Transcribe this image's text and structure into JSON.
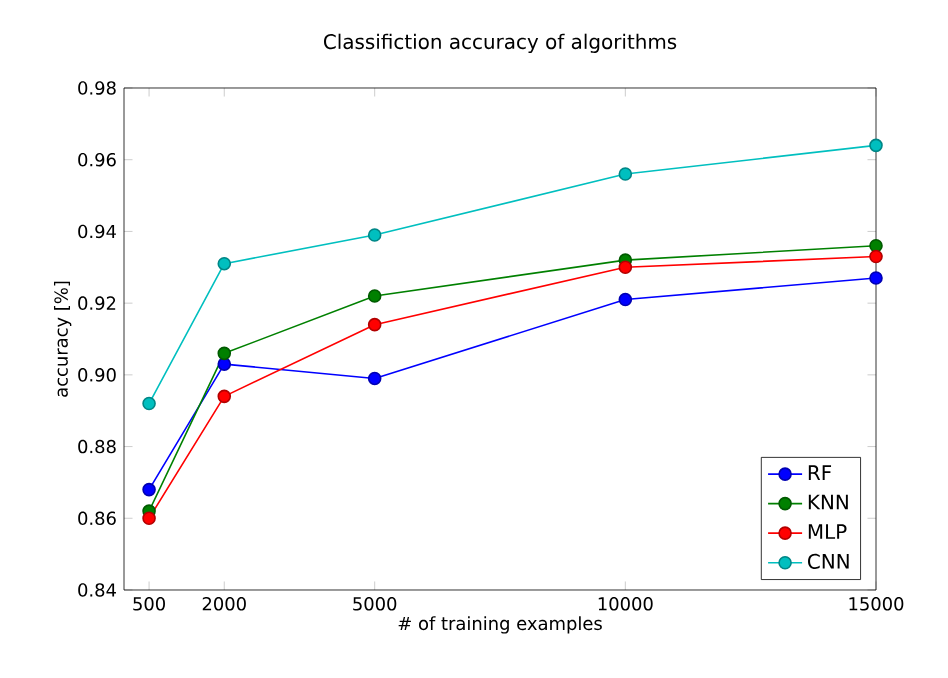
{
  "chart_data": {
    "type": "line",
    "title": "Classifiction accuracy of algorithms",
    "xlabel": "# of training examples",
    "ylabel": "accuracy [%]",
    "x": [
      500,
      2000,
      5000,
      10000,
      15000
    ],
    "series": [
      {
        "name": "RF",
        "color": "#0000ff",
        "values": [
          0.868,
          0.903,
          0.899,
          0.921,
          0.927
        ]
      },
      {
        "name": "KNN",
        "color": "#008000",
        "values": [
          0.862,
          0.906,
          0.922,
          0.932,
          0.936
        ]
      },
      {
        "name": "MLP",
        "color": "#ff0000",
        "values": [
          0.86,
          0.894,
          0.914,
          0.93,
          0.933
        ]
      },
      {
        "name": "CNN",
        "color": "#00bfbf",
        "values": [
          0.892,
          0.931,
          0.939,
          0.956,
          0.964
        ]
      }
    ],
    "xlim": [
      0,
      15000
    ],
    "xticks": [
      500,
      2000,
      5000,
      10000,
      15000
    ],
    "ylim": [
      0.84,
      0.98
    ],
    "yticks": [
      {
        "value": 0.84,
        "label": "0.84"
      },
      {
        "value": 0.86,
        "label": "0.86"
      },
      {
        "value": 0.88,
        "label": "0.88"
      },
      {
        "value": 0.9,
        "label": "0.90"
      },
      {
        "value": 0.92,
        "label": "0.92"
      },
      {
        "value": 0.94,
        "label": "0.94"
      },
      {
        "value": 0.96,
        "label": "0.96"
      },
      {
        "value": 0.98,
        "label": "0.98"
      }
    ],
    "legend": "bottom right",
    "marker": "circle",
    "grid": false,
    "line_style": "solid"
  }
}
